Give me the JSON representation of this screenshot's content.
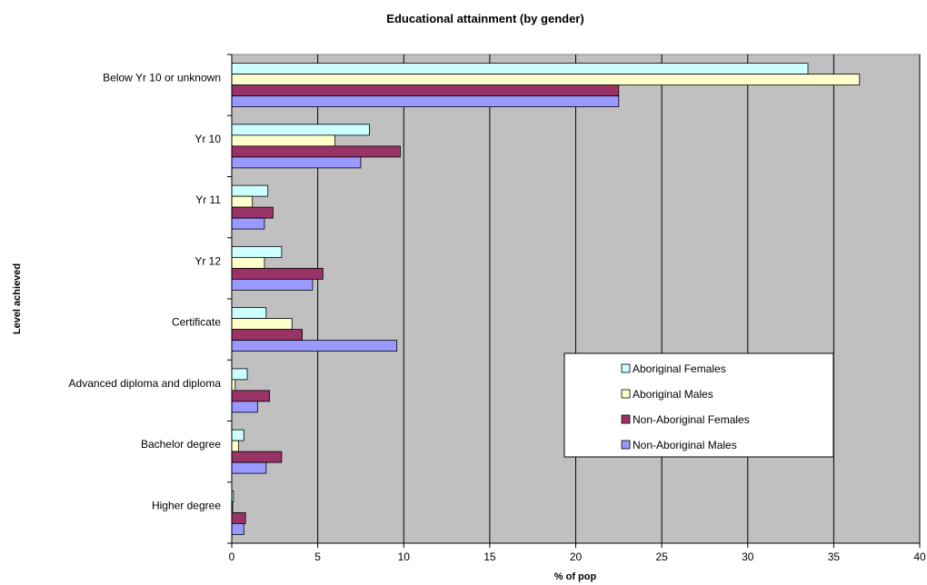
{
  "chart_data": {
    "type": "bar",
    "orientation": "horizontal",
    "title": "Educational attainment (by gender)",
    "xlabel": "% of pop",
    "ylabel": "Level achieved",
    "xlim": [
      0,
      40
    ],
    "xticks": [
      0,
      5,
      10,
      15,
      20,
      25,
      30,
      35,
      40
    ],
    "grid": true,
    "legend_position": "right",
    "plot_background": "#c0c0c0",
    "categories": [
      "Below Yr 10 or unknown",
      "Yr 10",
      "Yr 11",
      "Yr 12",
      "Certificate",
      "Advanced diploma and diploma",
      "Bachelor degree",
      "Higher degree"
    ],
    "series": [
      {
        "name": "Aboriginal Females",
        "color": "#ccffff",
        "values": [
          33.5,
          8.0,
          2.1,
          2.9,
          2.0,
          0.9,
          0.7,
          0.1
        ]
      },
      {
        "name": "Aboriginal Males",
        "color": "#ffffcc",
        "values": [
          36.5,
          6.0,
          1.2,
          1.9,
          3.5,
          0.2,
          0.4,
          0.05
        ]
      },
      {
        "name": "Non-Aboriginal Females",
        "color": "#993366",
        "values": [
          22.5,
          9.8,
          2.4,
          5.3,
          4.1,
          2.2,
          2.9,
          0.8
        ]
      },
      {
        "name": "Non-Aboriginal Males",
        "color": "#9999ff",
        "values": [
          22.5,
          7.5,
          1.9,
          4.7,
          9.6,
          1.5,
          2.0,
          0.7
        ]
      }
    ]
  }
}
